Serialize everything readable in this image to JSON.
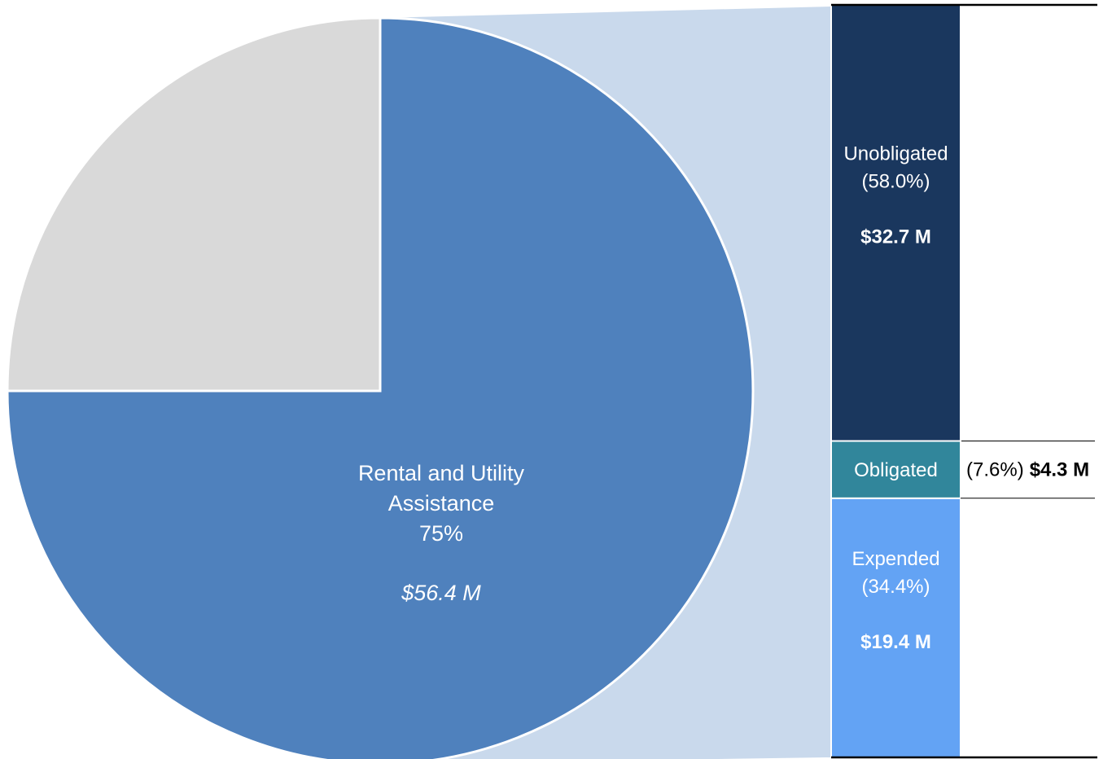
{
  "chart_data": [
    {
      "type": "pie",
      "categories": [
        "Rental and Utility Assistance",
        null
      ],
      "values": [
        75,
        25
      ],
      "value_labels": [
        "75%",
        null
      ],
      "amounts": [
        "$56.4 M",
        null
      ],
      "colors": [
        "#4f81bd",
        "#d9d9d9"
      ]
    },
    {
      "type": "stacked-bar",
      "categories": [
        "Expended",
        "Obligated",
        "Unobligated"
      ],
      "values": [
        34.4,
        7.6,
        58.0
      ],
      "value_labels": [
        "(34.4%)",
        "(7.6%)",
        "(58.0%)"
      ],
      "amounts": [
        "$19.4 M",
        "$4.3 M",
        "$32.7 M"
      ],
      "colors": [
        "#63a3f4",
        "#31869b",
        "#1a375e"
      ]
    }
  ]
}
